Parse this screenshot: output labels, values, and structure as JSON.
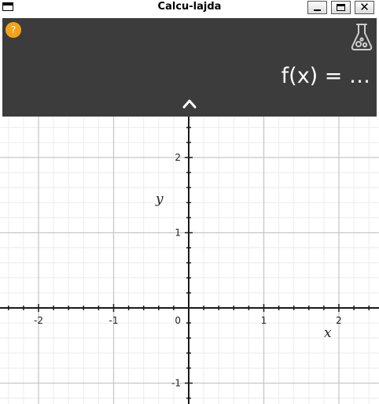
{
  "window": {
    "title": "Calcu-lajda",
    "controls": {
      "menu_icon": "window-menu-icon",
      "minimize_icon": "minimize-icon",
      "maximize_icon": "maximize-icon",
      "close_glyph": "✕"
    }
  },
  "panel": {
    "background": "#3c3c3c",
    "help": {
      "glyph": "?",
      "color": "#f5a318"
    },
    "lab_icon": "flask-icon",
    "expression": "f(x) = …",
    "toggle_icon": "chevron-up-icon"
  },
  "graph": {
    "x_tick_labels": [
      "-2",
      "-1",
      "0",
      "1",
      "2"
    ],
    "y_tick_labels": [
      "2",
      "1",
      "-1"
    ],
    "x_axis_label": "x",
    "y_axis_label": "y",
    "x_range": [
      -2.5,
      2.5
    ],
    "y_range": [
      -1.25,
      2.55
    ],
    "grid": true,
    "minor_divisions": 5
  }
}
